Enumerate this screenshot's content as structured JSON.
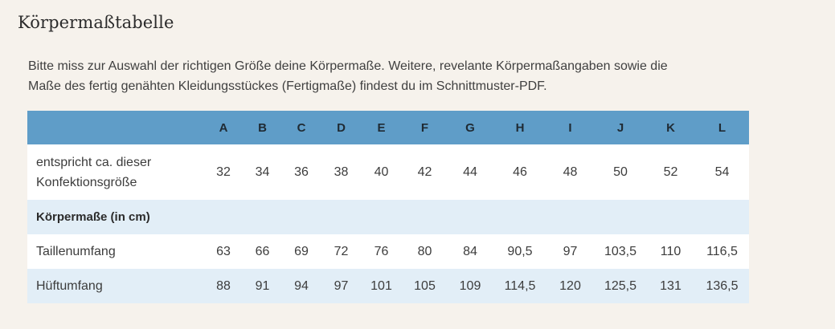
{
  "page": {
    "title": "Körpermaßtabelle",
    "intro_line1": "Bitte miss zur Auswahl der richtigen Größe deine Körpermaße. Weitere, revelante Körpermaßangaben sowie die",
    "intro_line2": "Maße des fertig genähten Kleidungsstückes (Fertigmaße) findest du im Schnittmuster-PDF."
  },
  "table": {
    "sizes": [
      "A",
      "B",
      "C",
      "D",
      "E",
      "F",
      "G",
      "H",
      "I",
      "J",
      "K",
      "L"
    ],
    "confection": {
      "label_line1": "entspricht ca. dieser",
      "label_line2": "Konfektionsgröße",
      "values": [
        "32",
        "34",
        "36",
        "38",
        "40",
        "42",
        "44",
        "46",
        "48",
        "50",
        "52",
        "54"
      ]
    },
    "section_label": "Körpermaße (in cm)",
    "waist": {
      "label": "Taillenumfang",
      "values": [
        "63",
        "66",
        "69",
        "72",
        "76",
        "80",
        "84",
        "90,5",
        "97",
        "103,5",
        "110",
        "116,5"
      ]
    },
    "hip": {
      "label": "Hüftumfang",
      "values": [
        "88",
        "91",
        "94",
        "97",
        "101",
        "105",
        "109",
        "114,5",
        "120",
        "125,5",
        "131",
        "136,5"
      ]
    }
  },
  "colors": {
    "background": "#f6f2ec",
    "header_blue": "#5f9dc8",
    "row_light_blue": "#e2eef7",
    "row_white": "#ffffff"
  }
}
